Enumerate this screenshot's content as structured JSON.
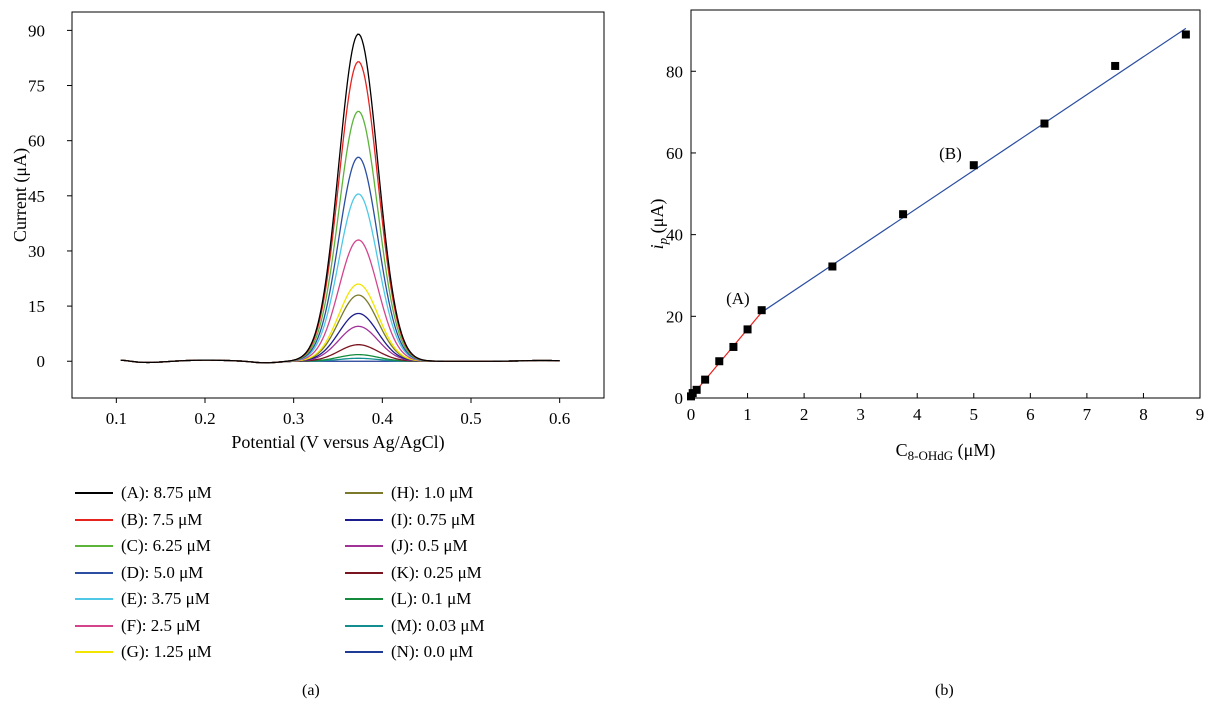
{
  "panels": {
    "a_label": "(a)",
    "b_label": "(b)"
  },
  "chart_data": [
    {
      "type": "line",
      "id": "a",
      "xlabel": "Potential (V versus Ag/AgCl)",
      "ylabel": "Current (μA)",
      "xlim": [
        0.05,
        0.65
      ],
      "ylim": [
        -10,
        95
      ],
      "xticks": [
        "0.1",
        "0.2",
        "0.3",
        "0.4",
        "0.5",
        "0.6"
      ],
      "yticks": [
        "0",
        "15",
        "30",
        "45",
        "60",
        "75",
        "90"
      ],
      "grid": false,
      "legend_position": "below",
      "peak_potential": 0.373,
      "series": [
        {
          "name": "(A): 8.75 μM",
          "color": "#000000",
          "peak_current": 89.0
        },
        {
          "name": "(B): 7.5 μM",
          "color": "#e8231d",
          "peak_current": 81.5
        },
        {
          "name": "(C): 6.25 μM",
          "color": "#5cb43a",
          "peak_current": 68.0
        },
        {
          "name": "(D): 5.0 μM",
          "color": "#2b4ea2",
          "peak_current": 55.5
        },
        {
          "name": "(E): 3.75 μM",
          "color": "#4ec8e6",
          "peak_current": 45.5
        },
        {
          "name": "(F): 2.5 μM",
          "color": "#d4448c",
          "peak_current": 33.0
        },
        {
          "name": "(G): 1.25 μM",
          "color": "#f2e500",
          "peak_current": 21.0
        },
        {
          "name": "(H): 1.0 μM",
          "color": "#7a7a2a",
          "peak_current": 18.0
        },
        {
          "name": "(I): 0.75 μM",
          "color": "#1c1c8c",
          "peak_current": 13.0
        },
        {
          "name": "(J): 0.5 μM",
          "color": "#a03298",
          "peak_current": 9.5
        },
        {
          "name": "(K): 0.25 μM",
          "color": "#7a1420",
          "peak_current": 4.5
        },
        {
          "name": "(L): 0.1 μM",
          "color": "#148a3c",
          "peak_current": 1.8
        },
        {
          "name": "(M): 0.03 μM",
          "color": "#138e8e",
          "peak_current": 0.8
        },
        {
          "name": "(N): 0.0 μM",
          "color": "#1e3c96",
          "peak_current": 0.0
        }
      ]
    },
    {
      "type": "scatter",
      "id": "b",
      "xlabel_main": "C",
      "xlabel_sub": "8-OHdG",
      "xlabel_unit": " (μM)",
      "ylabel_main": "i",
      "ylabel_sub": "p",
      "ylabel_unit": " (μA)",
      "xlim": [
        0,
        9
      ],
      "ylim": [
        0,
        95
      ],
      "xticks": [
        "0",
        "1",
        "2",
        "3",
        "4",
        "5",
        "6",
        "7",
        "8",
        "9"
      ],
      "yticks": [
        "0",
        "20",
        "40",
        "60",
        "80"
      ],
      "grid": false,
      "points": {
        "x": [
          0,
          0.03,
          0.1,
          0.25,
          0.5,
          0.75,
          1.0,
          1.25,
          2.5,
          3.75,
          5.0,
          6.25,
          7.5,
          8.75
        ],
        "y": [
          0.4,
          1.2,
          2.0,
          4.5,
          9.0,
          12.5,
          16.8,
          21.5,
          32.2,
          45.0,
          57.0,
          67.2,
          81.3,
          89.0
        ]
      },
      "fits": [
        {
          "color": "#e8231d",
          "x": [
            0,
            1.25
          ],
          "y": [
            0.3,
            21.0
          ]
        },
        {
          "color": "#2b4ea2",
          "x": [
            1.25,
            8.75
          ],
          "y": [
            21.0,
            90.5
          ]
        }
      ],
      "annotations": [
        {
          "text": "(A)",
          "x": 1.25,
          "y": 21.5
        },
        {
          "text": "(B)",
          "x": 5.0,
          "y": 57.0
        }
      ]
    }
  ]
}
